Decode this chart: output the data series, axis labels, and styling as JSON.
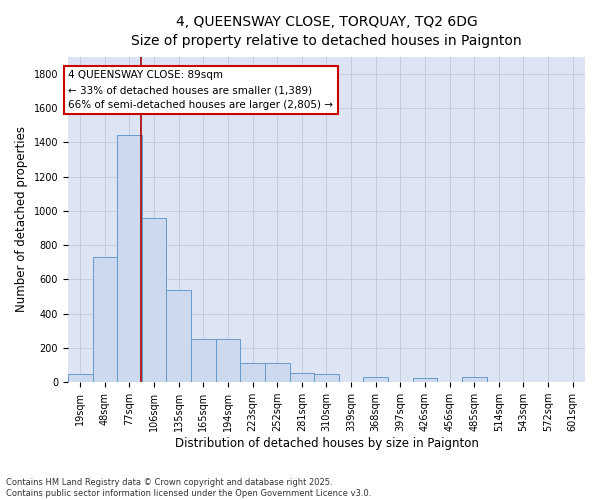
{
  "title_line1": "4, QUEENSWAY CLOSE, TORQUAY, TQ2 6DG",
  "title_line2": "Size of property relative to detached houses in Paignton",
  "xlabel": "Distribution of detached houses by size in Paignton",
  "ylabel": "Number of detached properties",
  "categories": [
    "19sqm",
    "48sqm",
    "77sqm",
    "106sqm",
    "135sqm",
    "165sqm",
    "194sqm",
    "223sqm",
    "252sqm",
    "281sqm",
    "310sqm",
    "339sqm",
    "368sqm",
    "397sqm",
    "426sqm",
    "456sqm",
    "485sqm",
    "514sqm",
    "543sqm",
    "572sqm",
    "601sqm"
  ],
  "values": [
    50,
    730,
    1440,
    960,
    540,
    255,
    255,
    110,
    110,
    55,
    50,
    0,
    30,
    0,
    25,
    0,
    30,
    0,
    0,
    0,
    0
  ],
  "bar_color": "#ccd9ee",
  "bar_edge_color": "#6699cc",
  "grid_color": "#c0c8dc",
  "background_color": "#dde5f5",
  "vline_x": 2.45,
  "vline_color": "#aa0000",
  "annotation_text": "4 QUEENSWAY CLOSE: 89sqm\n← 33% of detached houses are smaller (1,389)\n66% of semi-detached houses are larger (2,805) →",
  "annotation_box_color": "#ffffff",
  "annotation_box_edge": "#cc0000",
  "ylim": [
    0,
    1900
  ],
  "yticks": [
    0,
    200,
    400,
    600,
    800,
    1000,
    1200,
    1400,
    1600,
    1800
  ],
  "footer": "Contains HM Land Registry data © Crown copyright and database right 2025.\nContains public sector information licensed under the Open Government Licence v3.0.",
  "title_fontsize": 10,
  "subtitle_fontsize": 9,
  "tick_fontsize": 7,
  "label_fontsize": 8.5,
  "annot_fontsize": 7.5
}
